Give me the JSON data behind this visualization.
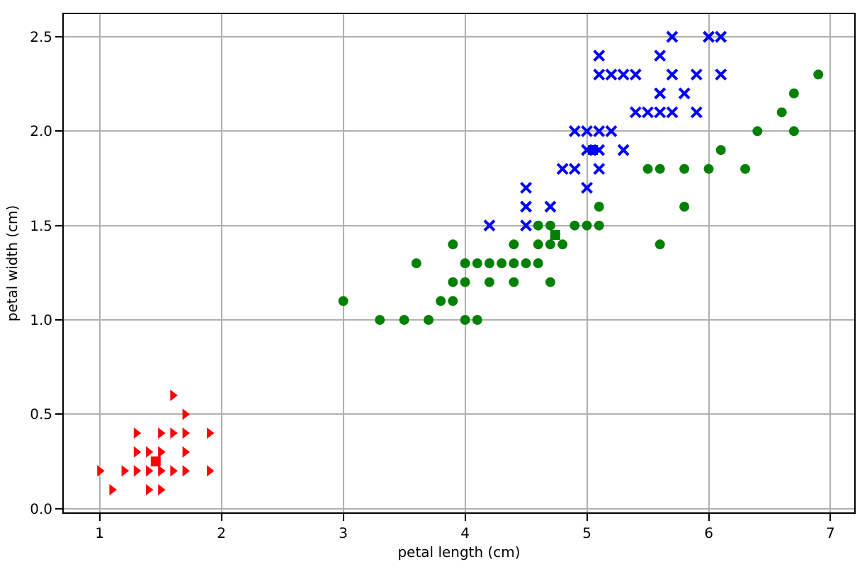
{
  "chart_data": {
    "type": "scatter",
    "xlabel": "petal length (cm)",
    "ylabel": "petal width (cm)",
    "xlim": [
      0.705,
      7.195
    ],
    "xticks": [
      1,
      2,
      3,
      4,
      5,
      6,
      7
    ],
    "ylim": [
      -0.02,
      2.62
    ],
    "yticks": [
      {
        "value": 0,
        "label": "0.0"
      },
      0.5,
      {
        "value": 1,
        "label": "1.0"
      },
      1.5,
      {
        "value": 2,
        "label": "2.0"
      },
      2.5
    ],
    "grid": true,
    "series": [
      {
        "color": "#ff0000",
        "marker": "triangle",
        "x": [
          1.0,
          1.1,
          1.2,
          1.3,
          1.4,
          1.5,
          1.6,
          1.7,
          1.9,
          1.3,
          1.4,
          1.5,
          1.7,
          1.3,
          1.5,
          1.6,
          1.7,
          1.9,
          1.7,
          1.6,
          1.4,
          1.5
        ],
        "values": [
          0.2,
          0.1,
          0.2,
          0.2,
          0.2,
          0.2,
          0.2,
          0.2,
          0.2,
          0.3,
          0.3,
          0.3,
          0.3,
          0.4,
          0.4,
          0.4,
          0.4,
          0.4,
          0.5,
          0.6,
          0.1,
          0.1
        ]
      },
      {
        "color": "#008000",
        "marker": "circle",
        "x": [
          3.0,
          3.3,
          3.5,
          3.7,
          4.0,
          4.1,
          3.8,
          3.9,
          3.9,
          4.0,
          4.2,
          4.4,
          4.7,
          3.6,
          4.0,
          4.1,
          4.2,
          4.3,
          4.4,
          4.5,
          4.6,
          3.9,
          4.4,
          4.6,
          4.7,
          4.8,
          5.6,
          4.6,
          4.7,
          4.9,
          5.0,
          5.1,
          5.1,
          5.8,
          5.5,
          5.6,
          5.8,
          6.0,
          6.3,
          6.1,
          6.4,
          6.7,
          6.6,
          6.7,
          6.9
        ],
        "values": [
          1.1,
          1.0,
          1.0,
          1.0,
          1.0,
          1.0,
          1.1,
          1.1,
          1.2,
          1.2,
          1.2,
          1.2,
          1.2,
          1.3,
          1.3,
          1.3,
          1.3,
          1.3,
          1.3,
          1.3,
          1.3,
          1.4,
          1.4,
          1.4,
          1.4,
          1.4,
          1.4,
          1.5,
          1.5,
          1.5,
          1.5,
          1.5,
          1.6,
          1.6,
          1.8,
          1.8,
          1.8,
          1.8,
          1.8,
          1.9,
          2.0,
          2.0,
          2.1,
          2.2,
          2.3
        ]
      },
      {
        "color": "#0000ff",
        "marker": "cross",
        "x": [
          4.2,
          4.5,
          4.5,
          4.7,
          4.5,
          5.0,
          4.8,
          4.9,
          5.1,
          5.0,
          5.1,
          5.3,
          4.9,
          5.0,
          5.1,
          5.2,
          5.4,
          5.5,
          5.6,
          5.7,
          5.9,
          5.6,
          5.8,
          5.1,
          5.2,
          5.3,
          5.4,
          5.7,
          5.9,
          6.1,
          5.1,
          5.6,
          5.7,
          6.0,
          6.1
        ],
        "values": [
          1.5,
          1.5,
          1.6,
          1.6,
          1.7,
          1.7,
          1.8,
          1.8,
          1.8,
          1.9,
          1.9,
          1.9,
          2.0,
          2.0,
          2.0,
          2.0,
          2.1,
          2.1,
          2.1,
          2.1,
          2.1,
          2.2,
          2.2,
          2.3,
          2.3,
          2.3,
          2.3,
          2.3,
          2.3,
          2.3,
          2.4,
          2.4,
          2.5,
          2.5,
          2.5
        ]
      },
      {
        "colors": [
          "#ff0000",
          "#008000",
          "#0000ff"
        ],
        "marker": "square",
        "x": [
          1.46,
          4.74,
          5.05
        ],
        "values": [
          0.25,
          1.45,
          1.9
        ]
      }
    ]
  }
}
